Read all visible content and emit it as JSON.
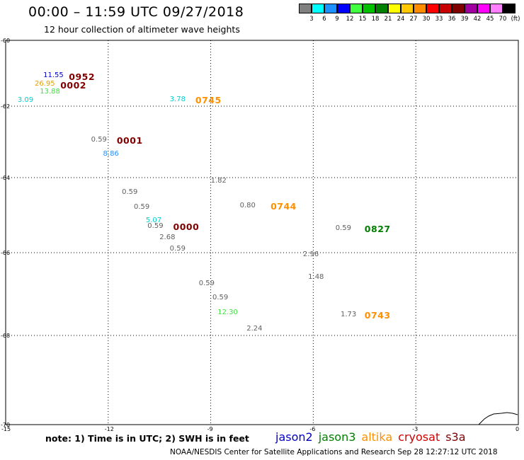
{
  "title": "00:00 – 11:59 UTC 09/27/2018",
  "subtitle": "12 hour collection of altimeter wave heights",
  "colorbar": {
    "colors": [
      "#808080",
      "#00ffff",
      "#1e90ff",
      "#0000ff",
      "#40ff40",
      "#00c000",
      "#008000",
      "#ffff00",
      "#ffc800",
      "#ff8c00",
      "#ff0000",
      "#c80000",
      "#800000",
      "#a000a0",
      "#ff00ff",
      "#ff80ff",
      "#000000"
    ],
    "labels": [
      "3",
      "6",
      "9",
      "12",
      "15",
      "18",
      "21",
      "24",
      "27",
      "30",
      "33",
      "36",
      "39",
      "42",
      "45",
      "70",
      "(ft)"
    ]
  },
  "map": {
    "lon_range": [
      -15,
      0
    ],
    "lat_range": [
      -70,
      -60
    ],
    "lat_ticks": [
      {
        "v": -60,
        "t": "-60"
      },
      {
        "v": -62,
        "t": "-62"
      },
      {
        "v": -64,
        "t": "-64"
      },
      {
        "v": -66,
        "t": "-66"
      },
      {
        "v": -68,
        "t": "-68"
      },
      {
        "v": -70,
        "t": "-70"
      }
    ],
    "lon_ticks": [
      {
        "v": -15,
        "t": "-15"
      },
      {
        "v": -12,
        "t": "-12"
      },
      {
        "v": -9,
        "t": "-9"
      },
      {
        "v": -6,
        "t": "-6"
      },
      {
        "v": -3,
        "t": "-3"
      },
      {
        "v": 0,
        "t": "0"
      }
    ],
    "grid": "dotted"
  },
  "observations": [
    {
      "lon": -13.9,
      "lat": -61.08,
      "swh": "11.55",
      "color": "#0000c8"
    },
    {
      "lon": -14.15,
      "lat": -61.33,
      "swh": "26.95",
      "color": "#e0a000"
    },
    {
      "lon": -14.0,
      "lat": -61.58,
      "swh": "13.88",
      "color": "#40e040"
    },
    {
      "lon": -14.65,
      "lat": -61.83,
      "swh": "3.09",
      "color": "#00d0d0"
    },
    {
      "lon": -10.2,
      "lat": -61.8,
      "swh": "3.78",
      "color": "#00d0d0"
    },
    {
      "lon": -12.5,
      "lat": -62.95,
      "swh": "0.59",
      "color": "#606060"
    },
    {
      "lon": -12.15,
      "lat": -63.35,
      "swh": "8.86",
      "color": "#1e90ff"
    },
    {
      "lon": -9.0,
      "lat": -64.1,
      "swh": "1.82",
      "color": "#606060"
    },
    {
      "lon": -11.6,
      "lat": -64.4,
      "swh": "0.59",
      "color": "#606060"
    },
    {
      "lon": -8.15,
      "lat": -64.75,
      "swh": "0.80",
      "color": "#606060"
    },
    {
      "lon": -11.25,
      "lat": -64.8,
      "swh": "0.59",
      "color": "#606060"
    },
    {
      "lon": -10.9,
      "lat": -65.15,
      "swh": "5.07",
      "color": "#00d0d0"
    },
    {
      "lon": -10.85,
      "lat": -65.3,
      "swh": "0.59",
      "color": "#606060"
    },
    {
      "lon": -10.5,
      "lat": -65.6,
      "swh": "2.68",
      "color": "#606060"
    },
    {
      "lon": -5.35,
      "lat": -65.35,
      "swh": "0.59",
      "color": "#606060"
    },
    {
      "lon": -10.2,
      "lat": -65.9,
      "swh": "0.59",
      "color": "#606060"
    },
    {
      "lon": -6.3,
      "lat": -66.05,
      "swh": "2.96",
      "color": "#606060"
    },
    {
      "lon": -6.15,
      "lat": -66.6,
      "swh": "1.48",
      "color": "#606060"
    },
    {
      "lon": -9.35,
      "lat": -66.75,
      "swh": "0.59",
      "color": "#606060"
    },
    {
      "lon": -8.95,
      "lat": -67.1,
      "swh": "0.59",
      "color": "#606060"
    },
    {
      "lon": -8.8,
      "lat": -67.45,
      "swh": "12.30",
      "color": "#40e040"
    },
    {
      "lon": -5.2,
      "lat": -67.5,
      "swh": "1.73",
      "color": "#606060"
    },
    {
      "lon": -7.95,
      "lat": -67.85,
      "swh": "2.24",
      "color": "#606060"
    }
  ],
  "pass_times": [
    {
      "lon": -13.15,
      "lat": -61.12,
      "time": "0952",
      "color": "#800000"
    },
    {
      "lon": -13.4,
      "lat": -61.37,
      "time": "0002",
      "color": "#800000"
    },
    {
      "lon": -9.45,
      "lat": -61.82,
      "time": "0745",
      "color": "#ff9000"
    },
    {
      "lon": -11.75,
      "lat": -62.97,
      "time": "0001",
      "color": "#800000"
    },
    {
      "lon": -7.25,
      "lat": -64.77,
      "time": "0744",
      "color": "#ff9000"
    },
    {
      "lon": -10.1,
      "lat": -65.32,
      "time": "0000",
      "color": "#800000"
    },
    {
      "lon": -4.5,
      "lat": -65.37,
      "time": "0827",
      "color": "#008000"
    },
    {
      "lon": -4.5,
      "lat": -67.52,
      "time": "0743",
      "color": "#ff9000"
    }
  ],
  "note": "note: 1) Time is in UTC; 2) SWH is in feet",
  "legend": [
    {
      "name": "jason2",
      "color": "#0000c8"
    },
    {
      "name": "jason3",
      "color": "#008000"
    },
    {
      "name": "altika",
      "color": "#ff9000"
    },
    {
      "name": "cryosat",
      "color": "#d00000"
    },
    {
      "name": "s3a",
      "color": "#800000"
    }
  ],
  "credit": "NOAA/NESDIS Center for Satellite Applications and Research   Sep 28 12:27:12 UTC 2018"
}
